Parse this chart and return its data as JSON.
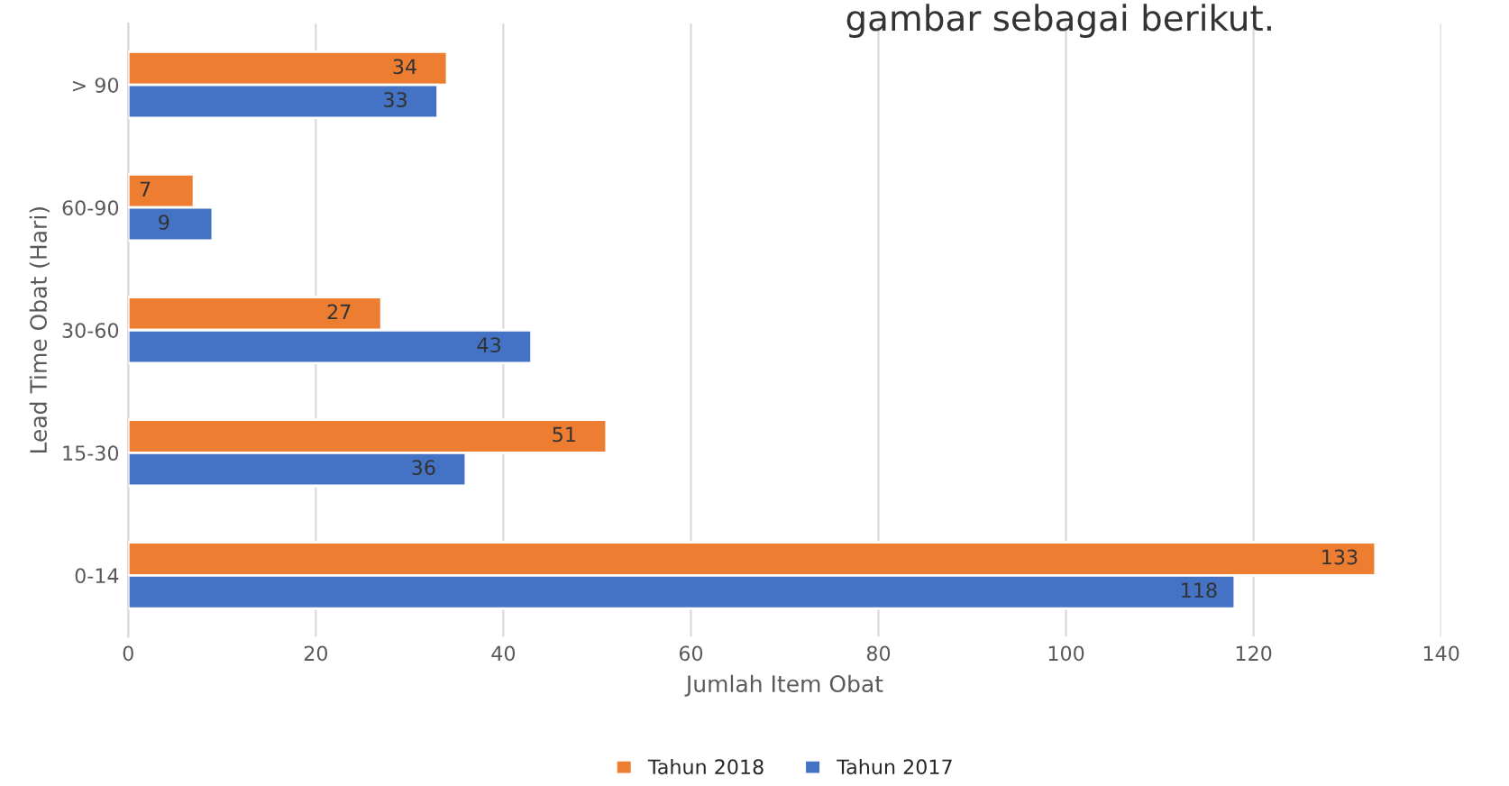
{
  "chart_data": {
    "type": "bar",
    "orientation": "horizontal",
    "xlabel": "Jumlah Item Obat",
    "ylabel": "Lead Time Obat (Hari)",
    "categories": [
      "> 90",
      "60-90",
      "30-60",
      "15-30",
      "0-14"
    ],
    "series": [
      {
        "name": "Tahun 2018",
        "color": "#ed7d31",
        "values": [
          34,
          7,
          27,
          51,
          133
        ]
      },
      {
        "name": "Tahun 2017",
        "color": "#4472c4",
        "values": [
          33,
          9,
          43,
          36,
          118
        ]
      }
    ],
    "xlim": [
      0,
      140
    ],
    "xticks": [
      0,
      20,
      40,
      60,
      80,
      100,
      120,
      140
    ],
    "grid": "x",
    "legend": "bottom",
    "data_labels": true,
    "annotations": [
      "gambar sebagai berikut."
    ]
  }
}
